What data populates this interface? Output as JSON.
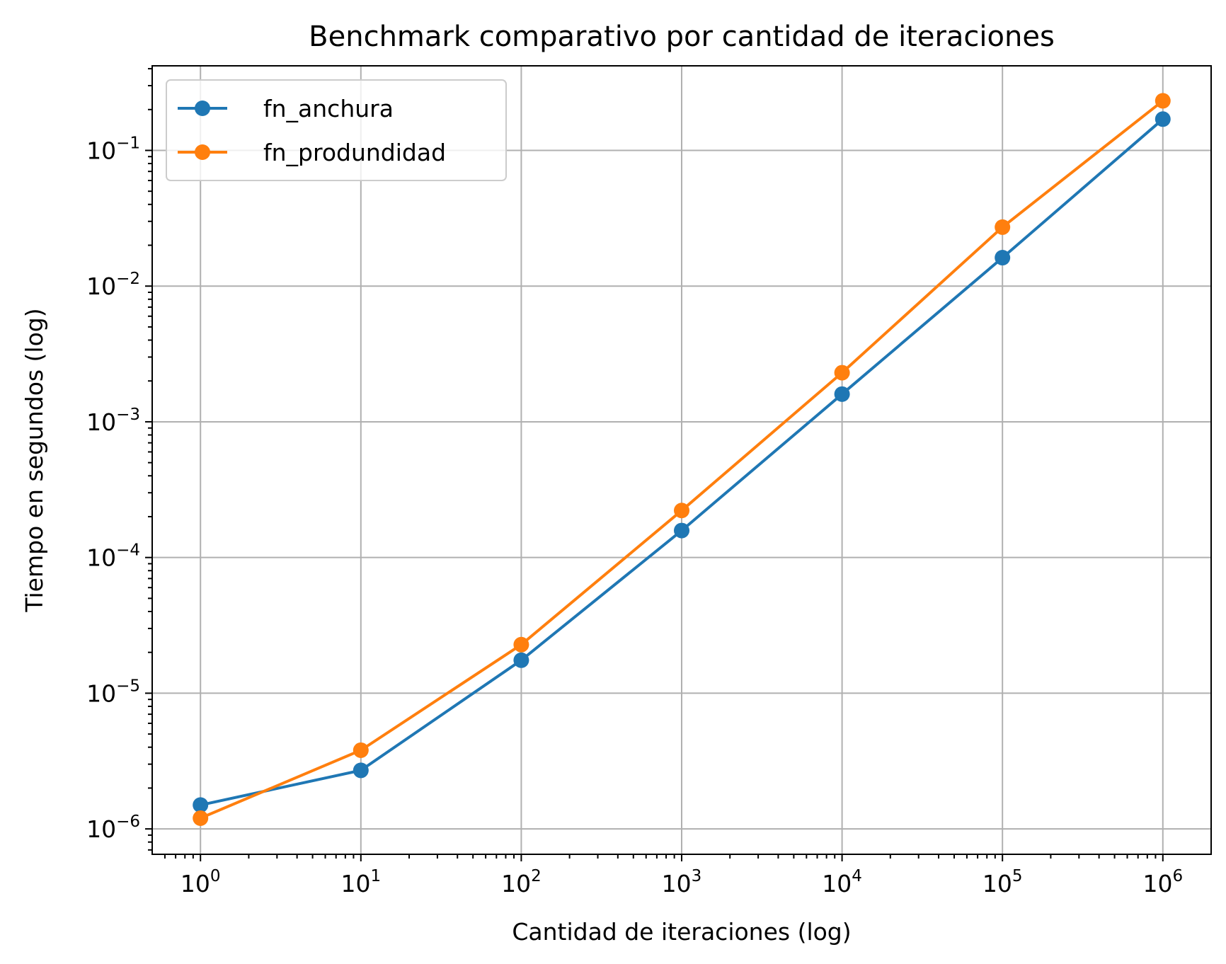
{
  "chart_data": {
    "type": "line",
    "title": "Benchmark comparativo por cantidad de iteraciones",
    "xlabel": "Cantidad de iteraciones (log)",
    "ylabel": "Tiempo en segundos (log)",
    "xscale": "log",
    "yscale": "log",
    "xlim": [
      0.5,
      2000000
    ],
    "ylim": [
      6.5e-07,
      0.42
    ],
    "grid": true,
    "legend_position": "top-left",
    "x": [
      1,
      10,
      100,
      1000,
      10000,
      100000,
      1000000
    ],
    "x_ticks": [
      {
        "base": "10",
        "exp": "0",
        "value": 1
      },
      {
        "base": "10",
        "exp": "1",
        "value": 10
      },
      {
        "base": "10",
        "exp": "2",
        "value": 100
      },
      {
        "base": "10",
        "exp": "3",
        "value": 1000
      },
      {
        "base": "10",
        "exp": "4",
        "value": 10000
      },
      {
        "base": "10",
        "exp": "5",
        "value": 100000
      },
      {
        "base": "10",
        "exp": "6",
        "value": 1000000
      }
    ],
    "y_ticks": [
      {
        "base": "10",
        "exp": "−6",
        "value": 1e-06
      },
      {
        "base": "10",
        "exp": "−5",
        "value": 1e-05
      },
      {
        "base": "10",
        "exp": "−4",
        "value": 0.0001
      },
      {
        "base": "10",
        "exp": "−3",
        "value": 0.001
      },
      {
        "base": "10",
        "exp": "−2",
        "value": 0.01
      },
      {
        "base": "10",
        "exp": "−1",
        "value": 0.1
      }
    ],
    "series": [
      {
        "name": "fn_anchura",
        "color": "#1f77b4",
        "marker": "circle",
        "values": [
          1.5e-06,
          2.7e-06,
          1.75e-05,
          0.000158,
          0.0016,
          0.0162,
          0.17
        ]
      },
      {
        "name": "fn_produndidad",
        "color": "#ff7f0e",
        "marker": "circle",
        "values": [
          1.2e-06,
          3.8e-06,
          2.28e-05,
          0.000222,
          0.0023,
          0.0272,
          0.232
        ]
      }
    ]
  }
}
